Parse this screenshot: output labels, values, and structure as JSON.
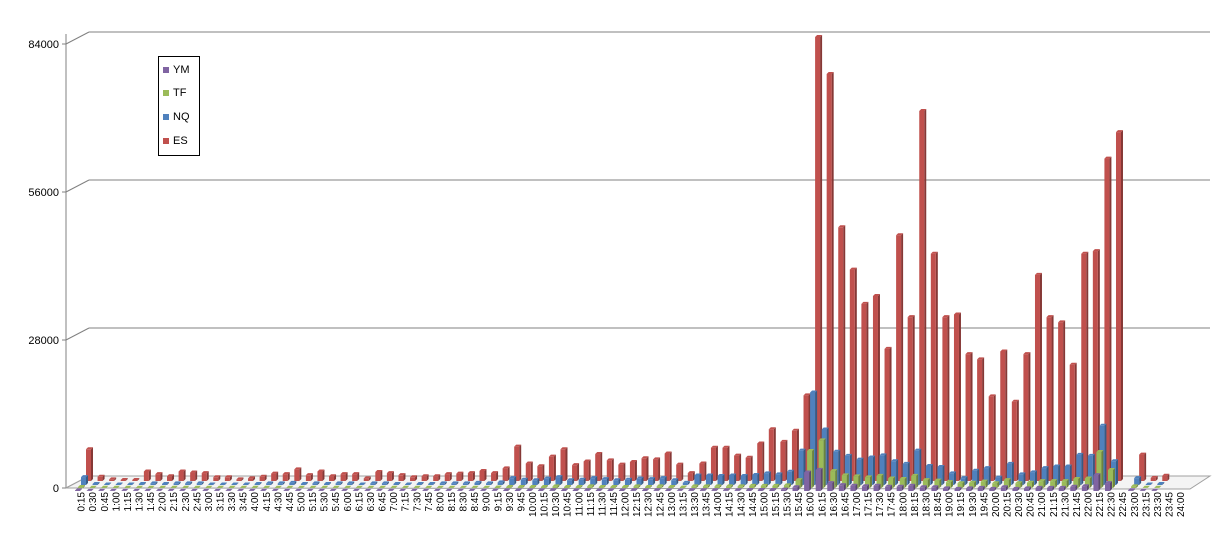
{
  "chart_data": {
    "type": "bar",
    "title": "",
    "xlabel": "",
    "ylabel": "",
    "ylim": [
      0,
      84000
    ],
    "yticks": [
      "0",
      "28000",
      "56000",
      "84000"
    ],
    "grid": true,
    "legend": "top-left",
    "categories": [
      "0:15",
      "0:30",
      "0:45",
      "1:00",
      "1:15",
      "1:30",
      "1:45",
      "2:00",
      "2:15",
      "2:30",
      "2:45",
      "3:00",
      "3:15",
      "3:30",
      "3:45",
      "4:00",
      "4:15",
      "4:30",
      "4:45",
      "5:00",
      "5:15",
      "5:30",
      "5:45",
      "6:00",
      "6:15",
      "6:30",
      "6:45",
      "7:00",
      "7:15",
      "7:30",
      "7:45",
      "8:00",
      "8:15",
      "8:30",
      "8:45",
      "9:00",
      "9:15",
      "9:30",
      "9:45",
      "10:00",
      "10:15",
      "10:30",
      "10:45",
      "11:00",
      "11:15",
      "11:30",
      "11:45",
      "12:00",
      "12:15",
      "12:30",
      "12:45",
      "13:00",
      "13:15",
      "13:30",
      "13:45",
      "14:00",
      "14:15",
      "14:30",
      "14:45",
      "15:00",
      "15:15",
      "15:30",
      "15:45",
      "16:00",
      "16:15",
      "16:30",
      "16:45",
      "17:00",
      "17:15",
      "17:30",
      "17:45",
      "18:00",
      "18:15",
      "18:30",
      "18:45",
      "19:00",
      "19:15",
      "19:30",
      "19:45",
      "20:00",
      "20:15",
      "20:30",
      "20:45",
      "21:00",
      "21:15",
      "21:30",
      "21:45",
      "22:00",
      "22:15",
      "22:30",
      "22:45",
      "23:00",
      "23:15",
      "23:30",
      "23:45",
      "24:00"
    ],
    "series": [
      {
        "name": "ES",
        "color": "#C0504D",
        "values": [
          6000,
          800,
          300,
          200,
          200,
          1800,
          1300,
          900,
          1800,
          1600,
          1500,
          700,
          700,
          300,
          500,
          800,
          1400,
          1300,
          2200,
          1100,
          1800,
          900,
          1300,
          1300,
          500,
          1700,
          1500,
          1100,
          700,
          900,
          900,
          1300,
          1400,
          1500,
          1900,
          1500,
          2400,
          6500,
          3300,
          2800,
          4600,
          6000,
          3000,
          3700,
          5100,
          3900,
          3100,
          3600,
          4300,
          4100,
          5200,
          3100,
          1500,
          3300,
          6300,
          6300,
          4800,
          4400,
          7100,
          9800,
          7400,
          9500,
          16200,
          84000,
          77000,
          48000,
          40000,
          33500,
          35000,
          25000,
          46500,
          31000,
          70000,
          43000,
          31000,
          31500,
          24000,
          23000,
          16000,
          24500,
          15000,
          24000,
          39000,
          31000,
          30000,
          22000,
          43000,
          43500,
          61000,
          66000,
          0,
          5000,
          600,
          1000,
          0,
          0
        ]
      },
      {
        "name": "NQ",
        "color": "#4F81BD",
        "values": [
          1500,
          200,
          100,
          100,
          100,
          200,
          300,
          200,
          300,
          300,
          300,
          100,
          100,
          100,
          100,
          200,
          300,
          300,
          400,
          200,
          300,
          200,
          300,
          300,
          100,
          300,
          300,
          200,
          100,
          200,
          200,
          300,
          300,
          300,
          400,
          300,
          500,
          1300,
          1000,
          900,
          1200,
          1500,
          900,
          1000,
          1300,
          1100,
          900,
          1000,
          1200,
          1100,
          1300,
          900,
          400,
          1800,
          1800,
          1700,
          1800,
          1700,
          1900,
          2200,
          2000,
          2500,
          6500,
          17500,
          10500,
          6300,
          5500,
          4800,
          5200,
          5600,
          4500,
          4000,
          6500,
          3600,
          3400,
          2200,
          1300,
          2700,
          3200,
          1400,
          4000,
          2000,
          2400,
          3200,
          3500,
          3500,
          5700,
          5500,
          11200,
          4500,
          0,
          1300,
          100,
          200,
          0,
          0
        ]
      },
      {
        "name": "TF",
        "color": "#9BBB59",
        "values": [
          200,
          50,
          50,
          50,
          50,
          50,
          50,
          50,
          50,
          50,
          50,
          50,
          50,
          50,
          50,
          50,
          50,
          50,
          50,
          50,
          50,
          50,
          50,
          50,
          50,
          50,
          50,
          50,
          50,
          50,
          50,
          50,
          50,
          50,
          50,
          50,
          100,
          200,
          200,
          200,
          200,
          300,
          200,
          200,
          300,
          200,
          200,
          200,
          300,
          200,
          300,
          200,
          100,
          300,
          300,
          300,
          300,
          300,
          400,
          400,
          400,
          500,
          1500,
          7000,
          9000,
          3200,
          2400,
          2200,
          2000,
          2300,
          1800,
          1700,
          2300,
          1500,
          1400,
          1100,
          900,
          1000,
          1200,
          900,
          1500,
          900,
          1000,
          1300,
          1300,
          1300,
          1700,
          1800,
          6800,
          3400,
          0,
          300,
          50,
          50,
          0,
          0
        ]
      },
      {
        "name": "YM",
        "color": "#8064A2",
        "values": [
          100,
          20,
          20,
          20,
          20,
          20,
          20,
          20,
          20,
          20,
          20,
          20,
          20,
          20,
          20,
          20,
          20,
          20,
          20,
          20,
          20,
          20,
          20,
          20,
          20,
          20,
          20,
          20,
          20,
          20,
          20,
          20,
          20,
          20,
          20,
          20,
          50,
          100,
          100,
          100,
          100,
          150,
          100,
          100,
          150,
          100,
          100,
          100,
          150,
          100,
          150,
          100,
          50,
          150,
          150,
          150,
          150,
          150,
          200,
          200,
          200,
          250,
          700,
          3500,
          4000,
          1500,
          1100,
          1000,
          900,
          1000,
          800,
          800,
          1000,
          700,
          700,
          500,
          400,
          500,
          600,
          400,
          700,
          400,
          500,
          600,
          600,
          600,
          800,
          900,
          3000,
          1500,
          0,
          150,
          20,
          20,
          0,
          0
        ]
      }
    ],
    "legend_order": [
      "YM",
      "TF",
      "NQ",
      "ES"
    ]
  }
}
